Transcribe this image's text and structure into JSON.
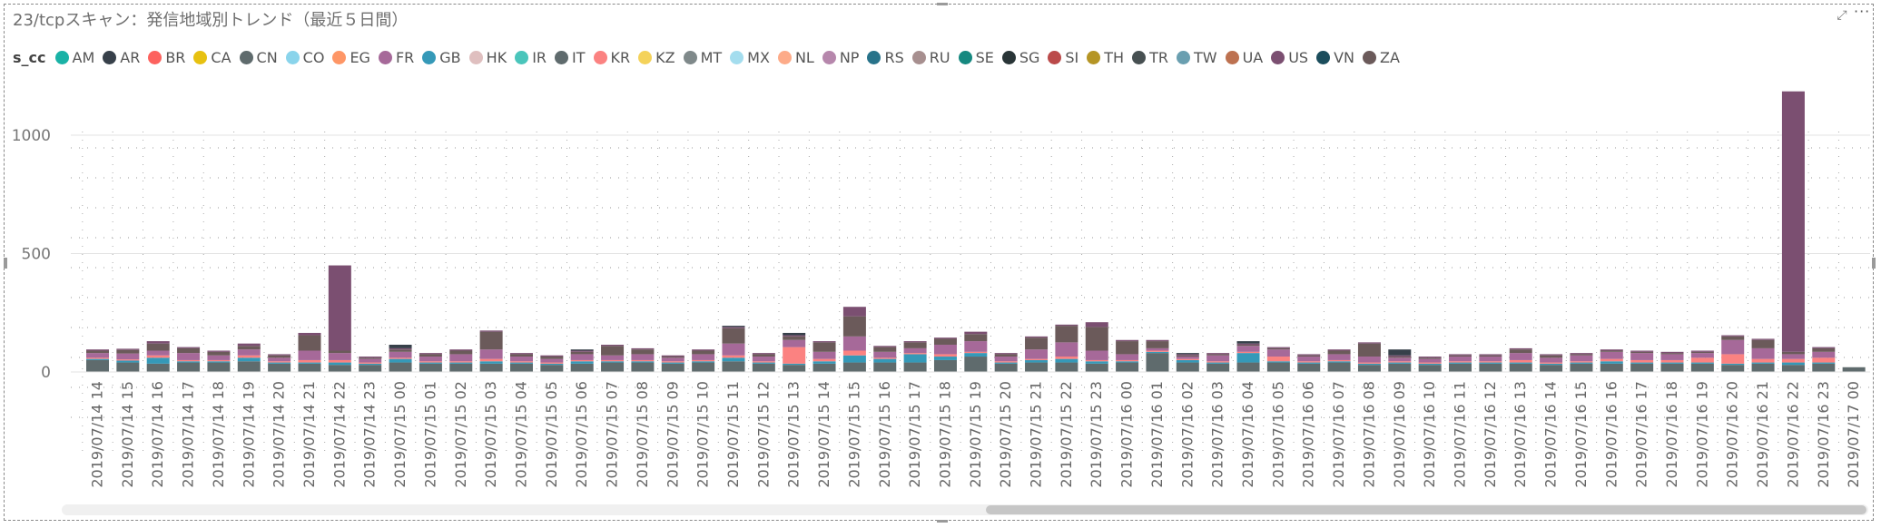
{
  "title": "23/tcpスキャン：発信地域別トレンド（最近５日間）",
  "icons": {
    "focus": "focus-mode-icon",
    "more": "more-options-icon"
  },
  "legend": {
    "title": "s_cc",
    "items": [
      {
        "label": "AM",
        "color": "#1ab2a6"
      },
      {
        "label": "AR",
        "color": "#37404a"
      },
      {
        "label": "BR",
        "color": "#fd625e"
      },
      {
        "label": "CA",
        "color": "#e7c111"
      },
      {
        "label": "CN",
        "color": "#5f6b6d"
      },
      {
        "label": "CO",
        "color": "#8ad4eb"
      },
      {
        "label": "EG",
        "color": "#fe9666"
      },
      {
        "label": "FR",
        "color": "#a66999"
      },
      {
        "label": "GB",
        "color": "#3599b8"
      },
      {
        "label": "HK",
        "color": "#dfbfbf"
      },
      {
        "label": "IR",
        "color": "#4ac5bb"
      },
      {
        "label": "IT",
        "color": "#5f6b6d"
      },
      {
        "label": "KR",
        "color": "#fb8281"
      },
      {
        "label": "KZ",
        "color": "#f4d25a"
      },
      {
        "label": "MT",
        "color": "#7f898a"
      },
      {
        "label": "MX",
        "color": "#a4ddee"
      },
      {
        "label": "NL",
        "color": "#fdab89"
      },
      {
        "label": "NP",
        "color": "#b687ac"
      },
      {
        "label": "RS",
        "color": "#28738a"
      },
      {
        "label": "RU",
        "color": "#a78f8f"
      },
      {
        "label": "SE",
        "color": "#168980"
      },
      {
        "label": "SG",
        "color": "#293537"
      },
      {
        "label": "SI",
        "color": "#bb4a4a"
      },
      {
        "label": "TH",
        "color": "#b59525"
      },
      {
        "label": "TR",
        "color": "#475052"
      },
      {
        "label": "TW",
        "color": "#6a9fb0"
      },
      {
        "label": "UA",
        "color": "#bd7150"
      },
      {
        "label": "US",
        "color": "#7b4f71"
      },
      {
        "label": "VN",
        "color": "#1b4d5c"
      },
      {
        "label": "ZA",
        "color": "#6b5a5a"
      }
    ]
  },
  "chart_data": {
    "type": "bar",
    "stacked": true,
    "title": "23/tcpスキャン：発信地域別トレンド（最近５日間）",
    "legend_title": "s_cc",
    "xlabel": "",
    "ylabel": "",
    "ylim": [
      -160,
      1230
    ],
    "yticks": [
      0,
      500,
      1000
    ],
    "grid": true,
    "legend_position": "top-left",
    "categories": [
      "2019/07/14 14",
      "2019/07/14 15",
      "2019/07/14 16",
      "2019/07/14 17",
      "2019/07/14 18",
      "2019/07/14 19",
      "2019/07/14 20",
      "2019/07/14 21",
      "2019/07/14 22",
      "2019/07/14 23",
      "2019/07/15 00",
      "2019/07/15 01",
      "2019/07/15 02",
      "2019/07/15 03",
      "2019/07/15 04",
      "2019/07/15 05",
      "2019/07/15 06",
      "2019/07/15 07",
      "2019/07/15 08",
      "2019/07/15 09",
      "2019/07/15 10",
      "2019/07/15 11",
      "2019/07/15 12",
      "2019/07/15 13",
      "2019/07/15 14",
      "2019/07/15 15",
      "2019/07/15 16",
      "2019/07/15 17",
      "2019/07/15 18",
      "2019/07/15 19",
      "2019/07/15 20",
      "2019/07/15 21",
      "2019/07/15 22",
      "2019/07/15 23",
      "2019/07/16 00",
      "2019/07/16 01",
      "2019/07/16 02",
      "2019/07/16 03",
      "2019/07/16 04",
      "2019/07/16 05",
      "2019/07/16 06",
      "2019/07/16 07",
      "2019/07/16 08",
      "2019/07/16 09",
      "2019/07/16 10",
      "2019/07/16 11",
      "2019/07/16 12",
      "2019/07/16 13",
      "2019/07/16 14",
      "2019/07/16 15",
      "2019/07/16 16",
      "2019/07/16 17",
      "2019/07/16 18",
      "2019/07/16 19",
      "2019/07/16 20",
      "2019/07/16 21",
      "2019/07/16 22",
      "2019/07/16 23",
      "2019/07/17 00"
    ],
    "series": [
      {
        "name": "CN",
        "color": "#5f6b6d",
        "values": [
          50,
          40,
          35,
          40,
          40,
          45,
          35,
          35,
          30,
          30,
          40,
          35,
          35,
          35,
          35,
          30,
          35,
          40,
          40,
          35,
          40,
          45,
          35,
          30,
          35,
          40,
          40,
          40,
          50,
          65,
          35,
          40,
          40,
          35,
          40,
          80,
          40,
          35,
          40,
          40,
          35,
          40,
          30,
          35,
          30,
          35,
          35,
          35,
          30,
          35,
          35,
          35,
          35,
          35,
          30,
          35,
          30,
          35,
          20
        ]
      },
      {
        "name": "GB",
        "color": "#3599b8",
        "values": [
          5,
          8,
          25,
          5,
          5,
          15,
          5,
          5,
          10,
          5,
          15,
          5,
          5,
          10,
          5,
          5,
          10,
          5,
          5,
          5,
          5,
          15,
          5,
          5,
          10,
          30,
          15,
          35,
          15,
          15,
          5,
          10,
          15,
          10,
          5,
          5,
          10,
          5,
          40,
          5,
          5,
          5,
          5,
          5,
          5,
          5,
          5,
          5,
          5,
          5,
          10,
          5,
          5,
          5,
          5,
          5,
          10,
          5,
          0
        ]
      },
      {
        "name": "KR",
        "color": "#fb8281",
        "values": [
          5,
          5,
          10,
          5,
          5,
          10,
          5,
          10,
          10,
          5,
          5,
          5,
          5,
          10,
          5,
          5,
          5,
          5,
          5,
          5,
          5,
          10,
          5,
          70,
          10,
          20,
          5,
          5,
          10,
          5,
          5,
          5,
          10,
          5,
          5,
          5,
          5,
          5,
          5,
          20,
          5,
          5,
          5,
          5,
          5,
          5,
          5,
          10,
          5,
          5,
          10,
          10,
          10,
          20,
          40,
          15,
          15,
          20,
          0
        ]
      },
      {
        "name": "FR",
        "color": "#a66999",
        "values": [
          20,
          25,
          20,
          30,
          20,
          25,
          15,
          40,
          30,
          15,
          25,
          20,
          30,
          40,
          20,
          15,
          25,
          20,
          25,
          15,
          25,
          50,
          20,
          30,
          30,
          60,
          25,
          20,
          40,
          45,
          20,
          40,
          60,
          40,
          25,
          10,
          10,
          25,
          25,
          30,
          20,
          25,
          25,
          15,
          15,
          20,
          20,
          30,
          20,
          25,
          30,
          30,
          25,
          20,
          60,
          45,
          20,
          25,
          0
        ]
      },
      {
        "name": "ZA",
        "color": "#6b5a5a",
        "values": [
          10,
          15,
          30,
          20,
          15,
          15,
          10,
          65,
          10,
          5,
          10,
          10,
          15,
          75,
          10,
          10,
          10,
          40,
          20,
          5,
          15,
          65,
          10,
          15,
          40,
          85,
          20,
          25,
          25,
          30,
          10,
          50,
          70,
          100,
          55,
          30,
          5,
          5,
          5,
          5,
          5,
          15,
          55,
          5,
          5,
          5,
          5,
          15,
          10,
          5,
          5,
          5,
          5,
          5,
          15,
          35,
          10,
          15,
          0
        ]
      },
      {
        "name": "US",
        "color": "#7b4f71",
        "values": [
          5,
          5,
          10,
          5,
          5,
          10,
          5,
          10,
          360,
          5,
          5,
          5,
          5,
          5,
          5,
          5,
          5,
          5,
          5,
          5,
          5,
          5,
          5,
          5,
          5,
          40,
          5,
          5,
          5,
          10,
          5,
          5,
          5,
          20,
          5,
          5,
          5,
          5,
          5,
          5,
          5,
          5,
          5,
          5,
          5,
          5,
          5,
          5,
          5,
          5,
          5,
          5,
          5,
          5,
          5,
          5,
          1100,
          5,
          0
        ]
      },
      {
        "name": "AR",
        "color": "#37404a",
        "values": [
          0,
          0,
          0,
          0,
          0,
          0,
          0,
          0,
          0,
          0,
          15,
          0,
          0,
          0,
          0,
          0,
          5,
          0,
          0,
          0,
          0,
          5,
          0,
          10,
          0,
          0,
          0,
          0,
          0,
          0,
          0,
          0,
          0,
          0,
          0,
          0,
          5,
          0,
          10,
          0,
          0,
          0,
          0,
          25,
          0,
          0,
          0,
          0,
          0,
          0,
          0,
          0,
          0,
          0,
          0,
          0,
          0,
          0,
          0
        ]
      }
    ]
  },
  "scrollbar": {
    "thumb_start": 0.51,
    "thumb_fraction": 0.49
  }
}
